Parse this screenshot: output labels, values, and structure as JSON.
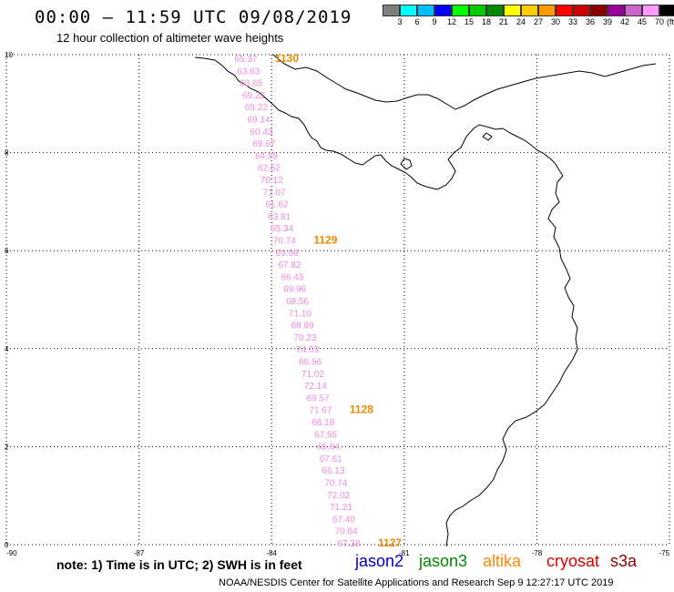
{
  "header": {
    "title": "00:00 – 11:59 UTC 09/08/2019",
    "subtitle": "12 hour collection of altimeter wave heights"
  },
  "colorbar": {
    "colors": [
      "#7f7f7f",
      "#00ffff",
      "#00bfff",
      "#0000ff",
      "#00ff00",
      "#00cc00",
      "#008800",
      "#ffff00",
      "#ffcc00",
      "#ff9900",
      "#ff0000",
      "#cc0000",
      "#880000",
      "#990099",
      "#cc66cc",
      "#ff99ff",
      "#000000"
    ],
    "labels": [
      "3",
      "6",
      "9",
      "12",
      "15",
      "18",
      "21",
      "24",
      "27",
      "30",
      "33",
      "36",
      "39",
      "42",
      "45",
      "70"
    ],
    "unit": "(ft)"
  },
  "axes": {
    "lon_ticks": [
      "-90",
      "-87",
      "-84",
      "-81",
      "-78",
      "-75"
    ],
    "lat_ticks": [
      "0",
      "2",
      "4",
      "6",
      "8",
      "10"
    ]
  },
  "track": {
    "color": "#ee88dd",
    "values": [
      "65.37",
      "63.63",
      "63.65",
      "69.22",
      "69.22",
      "69.14",
      "60.43",
      "69.67",
      "64.89",
      "62.52",
      "70.12",
      "71.07",
      "61.62",
      "63.81",
      "65.34",
      "70.74",
      "69.98",
      "67.82",
      "66.43",
      "69.96",
      "68.56",
      "71.10",
      "68.99",
      "70.23",
      "74.63",
      "66.56",
      "71.02",
      "72.14",
      "69.57",
      "71.67",
      "66.18",
      "67.55",
      "65.84",
      "67.61",
      "66.13",
      "70.74",
      "72.02",
      "71.21",
      "67.40",
      "70.64",
      "67.38"
    ],
    "time_labels": [
      "1130",
      "1129",
      "1128",
      "1127"
    ],
    "time_color": "#ee8800"
  },
  "footer": {
    "note": "note: 1) Time is in UTC; 2) SWH is in feet",
    "satellites": [
      {
        "name": "jason2",
        "color": "#0000cc"
      },
      {
        "name": "jason3",
        "color": "#008800"
      },
      {
        "name": "altika",
        "color": "#ff8800"
      },
      {
        "name": "cryosat",
        "color": "#dd0000"
      },
      {
        "name": "s3a",
        "color": "#880000"
      }
    ],
    "credit": "NOAA/NESDIS Center for Satellite Applications and Research    Sep  9 12:27:17 UTC 2019"
  }
}
